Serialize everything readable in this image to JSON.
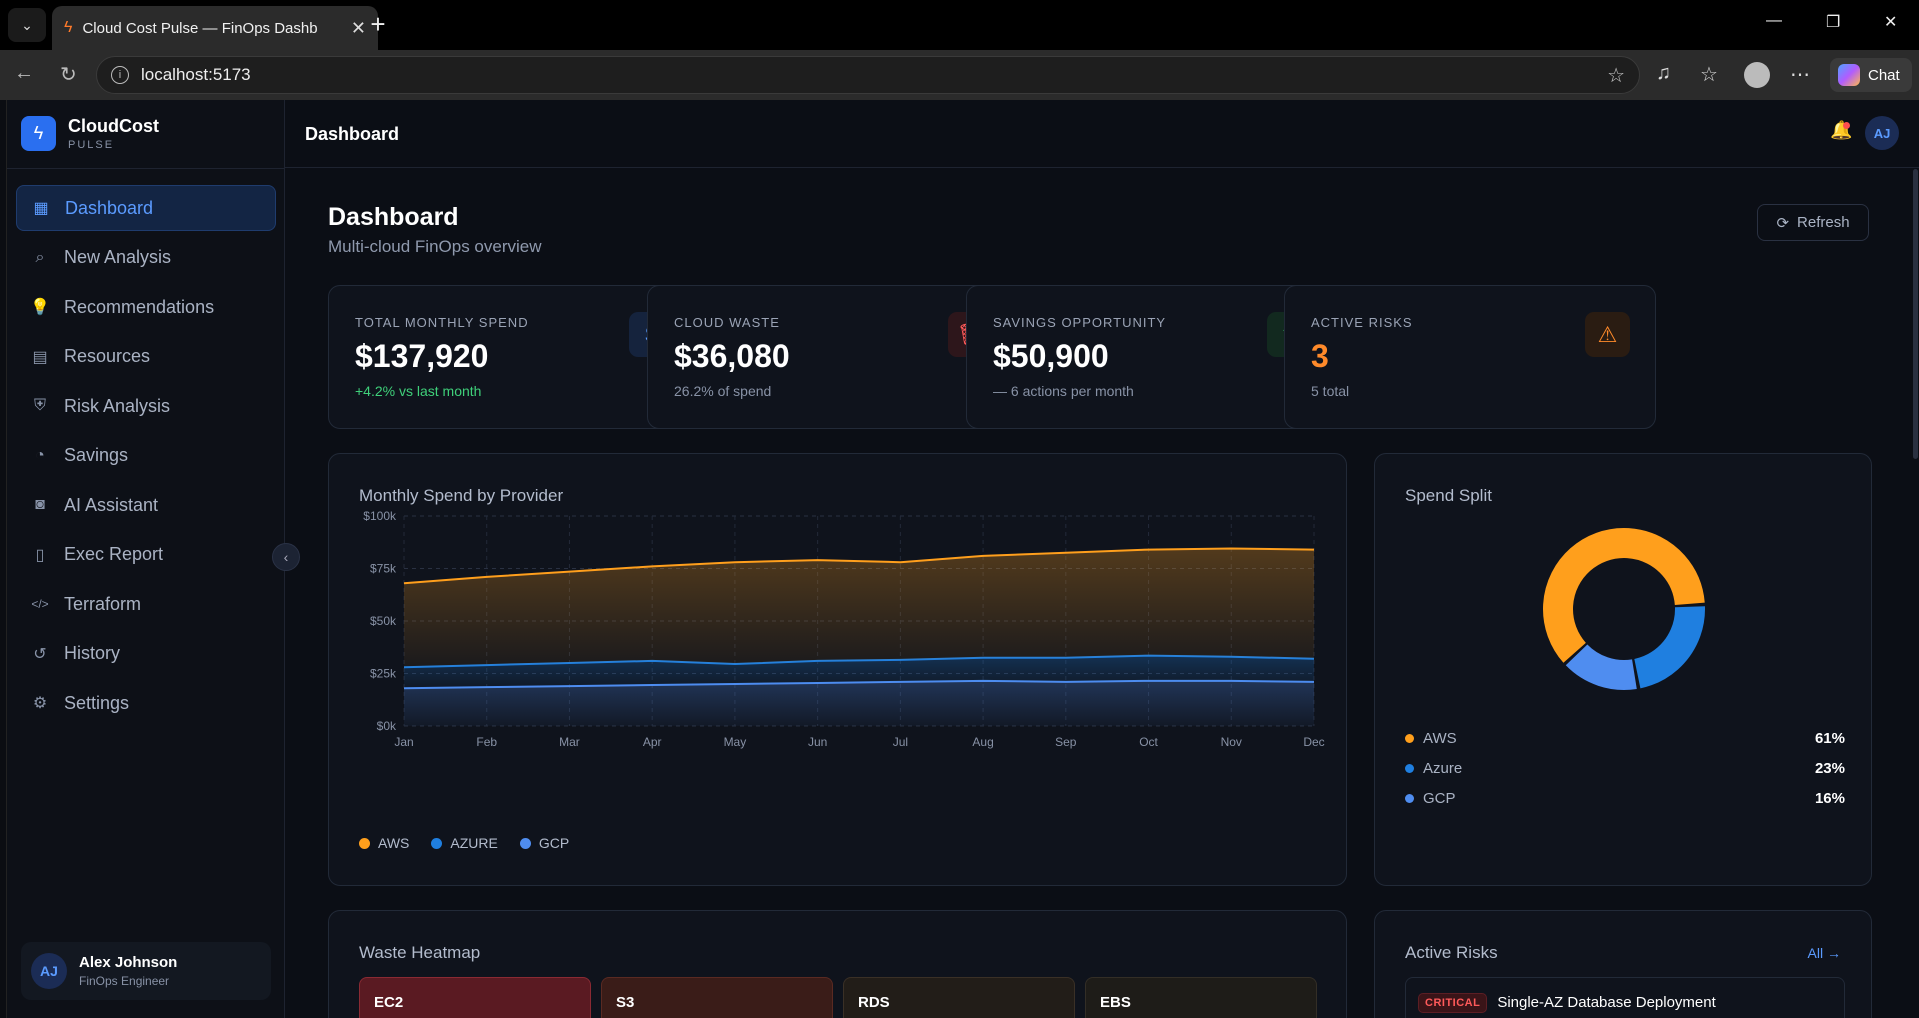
{
  "browser": {
    "tab_title": "Cloud Cost Pulse — FinOps Dashb",
    "url": "localhost:5173",
    "chat_label": "Chat"
  },
  "brand": {
    "name": "CloudCost",
    "sub": "PULSE"
  },
  "nav": [
    {
      "label": "Dashboard",
      "icon": "grid-icon",
      "glyph": "▦",
      "active": true
    },
    {
      "label": "New Analysis",
      "icon": "search-icon",
      "glyph": "⌕"
    },
    {
      "label": "Recommendations",
      "icon": "lightbulb-icon",
      "glyph": "💡"
    },
    {
      "label": "Resources",
      "icon": "server-icon",
      "glyph": "▤"
    },
    {
      "label": "Risk Analysis",
      "icon": "shield-icon",
      "glyph": "⛨"
    },
    {
      "label": "Savings",
      "icon": "piggy-bank-icon",
      "glyph": "◔"
    },
    {
      "label": "AI Assistant",
      "icon": "bot-icon",
      "glyph": "◙"
    },
    {
      "label": "Exec Report",
      "icon": "document-icon",
      "glyph": "▯"
    },
    {
      "label": "Terraform",
      "icon": "code-icon",
      "glyph": "</>"
    },
    {
      "label": "History",
      "icon": "history-icon",
      "glyph": "↺"
    },
    {
      "label": "Settings",
      "icon": "gear-icon",
      "glyph": "⚙"
    }
  ],
  "user": {
    "initials": "AJ",
    "name": "Alex Johnson",
    "role": "FinOps Engineer"
  },
  "topbar": {
    "title": "Dashboard",
    "initials": "AJ"
  },
  "page": {
    "title": "Dashboard",
    "subtitle": "Multi-cloud FinOps overview",
    "refresh_label": "Refresh"
  },
  "kpis": [
    {
      "label": "TOTAL MONTHLY SPEND",
      "value": "$137,920",
      "sub": "+4.2% vs last month",
      "icon": "dollar-icon",
      "glyph": "$",
      "sub_color": "#3fd07a",
      "icon_color": "#5b9bff",
      "icon_bg": "#15233d"
    },
    {
      "label": "CLOUD WASTE",
      "value": "$36,080",
      "sub": "26.2% of spend",
      "icon": "trash-icon",
      "glyph": "🗑",
      "icon_color": "#ff5a5a",
      "icon_bg": "#2d161b"
    },
    {
      "label": "SAVINGS OPPORTUNITY",
      "value": "$50,900",
      "sub": "— 6 actions  per month",
      "icon": "trending-down-icon",
      "glyph": "↘",
      "icon_color": "#3fd07a",
      "icon_bg": "#12291f"
    },
    {
      "label": "ACTIVE RISKS",
      "value": "3",
      "sub": "5 total",
      "icon": "alert-triangle-icon",
      "glyph": "⚠",
      "value_color": "#ff8a2a",
      "icon_color": "#ff8a2a",
      "icon_bg": "#2a1c12"
    }
  ],
  "spend_chart": {
    "title": "Monthly Spend by Provider"
  },
  "chart_data": {
    "type": "area",
    "categories": [
      "Jan",
      "Feb",
      "Mar",
      "Apr",
      "May",
      "Jun",
      "Jul",
      "Aug",
      "Sep",
      "Oct",
      "Nov",
      "Dec"
    ],
    "y_ticks": [
      "$0k",
      "$25k",
      "$50k",
      "$75k",
      "$100k"
    ],
    "ylim": [
      0,
      100000
    ],
    "stacked": true,
    "series": [
      {
        "name": "GCP",
        "color": "#4f8df0",
        "values": [
          18000,
          18500,
          19000,
          19500,
          20000,
          20500,
          21000,
          21500,
          21000,
          21500,
          21500,
          21000
        ]
      },
      {
        "name": "AZURE",
        "color": "#1f7fe0",
        "values": [
          10000,
          10500,
          11000,
          11500,
          9500,
          10500,
          10500,
          11000,
          11500,
          12000,
          11500,
          11000
        ]
      },
      {
        "name": "AWS",
        "color": "#ff9f1c",
        "values": [
          40000,
          42000,
          43500,
          45000,
          48500,
          48000,
          46500,
          48500,
          50000,
          50500,
          51500,
          52000
        ]
      }
    ],
    "legend": [
      "AWS",
      "AZURE",
      "GCP"
    ],
    "grid": true
  },
  "spend_split": {
    "title": "Spend Split",
    "items": [
      {
        "name": "AWS",
        "pct": 61,
        "label": "61%",
        "color": "#ff9f1c"
      },
      {
        "name": "Azure",
        "pct": 23,
        "label": "23%",
        "color": "#1f7fe0"
      },
      {
        "name": "GCP",
        "pct": 16,
        "label": "16%",
        "color": "#4f8df0"
      }
    ]
  },
  "heatmap": {
    "title": "Waste Heatmap",
    "cells": [
      {
        "label": "EC2",
        "bg": "#5a1a22",
        "border": "#8a2a33"
      },
      {
        "label": "S3",
        "bg": "#3a1c18",
        "border": "#5a2a22"
      },
      {
        "label": "RDS",
        "bg": "#221d18",
        "border": "#3a3026"
      },
      {
        "label": "EBS",
        "bg": "#1e1c18",
        "border": "#332e26"
      }
    ]
  },
  "risks": {
    "title": "Active Risks",
    "all_label": "All →",
    "first": {
      "severity": "CRITICAL",
      "title": "Single-AZ Database Deployment"
    }
  }
}
